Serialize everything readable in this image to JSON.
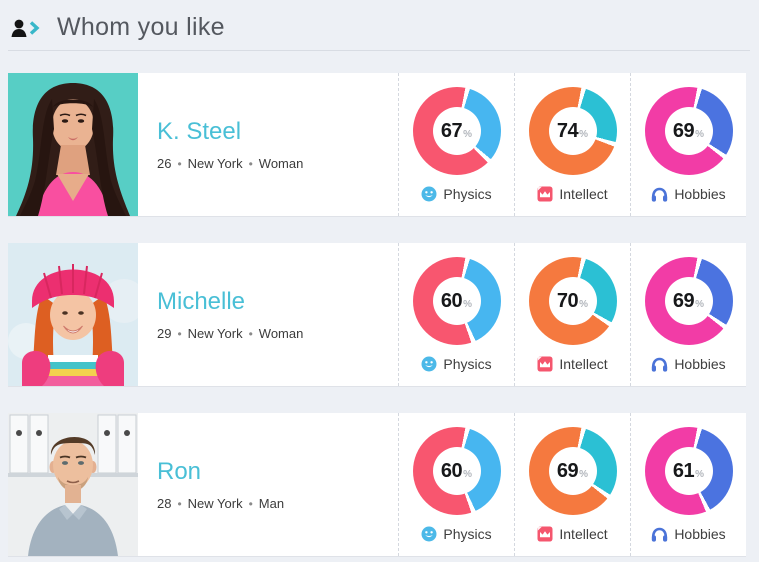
{
  "header": {
    "title": "Whom you like",
    "icon": "person-chevron-icon"
  },
  "meta_separator": "•",
  "percent_sign": "%",
  "metrics": [
    {
      "key": "physics",
      "label": "Physics",
      "icon": "smiley-face-icon",
      "color_main": "#f8566f",
      "color_rest": "#47b6f0"
    },
    {
      "key": "intellect",
      "label": "Intellect",
      "icon": "education-box-icon",
      "color_main": "#f5793f",
      "color_rest": "#2bc0d4"
    },
    {
      "key": "hobbies",
      "label": "Hobbies",
      "icon": "headphones-icon",
      "color_main": "#f23ca6",
      "color_rest": "#4b73e0"
    }
  ],
  "profiles": [
    {
      "name": "K. Steel",
      "age": "26",
      "city": "New York",
      "gender": "Woman",
      "photo": "brunette-woman-teal",
      "scores": {
        "physics": 67,
        "intellect": 74,
        "hobbies": 69
      }
    },
    {
      "name": "Michelle",
      "age": "29",
      "city": "New York",
      "gender": "Woman",
      "photo": "redhead-woman-beanie",
      "scores": {
        "physics": 60,
        "intellect": 70,
        "hobbies": 69
      }
    },
    {
      "name": "Ron",
      "age": "28",
      "city": "New York",
      "gender": "Man",
      "photo": "brown-hair-man",
      "scores": {
        "physics": 60,
        "intellect": 69,
        "hobbies": 61
      }
    }
  ],
  "chart_data": {
    "type": "pie",
    "note": "donut charts, one per profile per metric",
    "categories": [
      "Physics",
      "Intellect",
      "Hobbies"
    ],
    "series": [
      {
        "name": "K. Steel",
        "values": [
          67,
          74,
          69
        ]
      },
      {
        "name": "Michelle",
        "values": [
          60,
          70,
          69
        ]
      },
      {
        "name": "Ron",
        "values": [
          60,
          69,
          61
        ]
      }
    ]
  }
}
